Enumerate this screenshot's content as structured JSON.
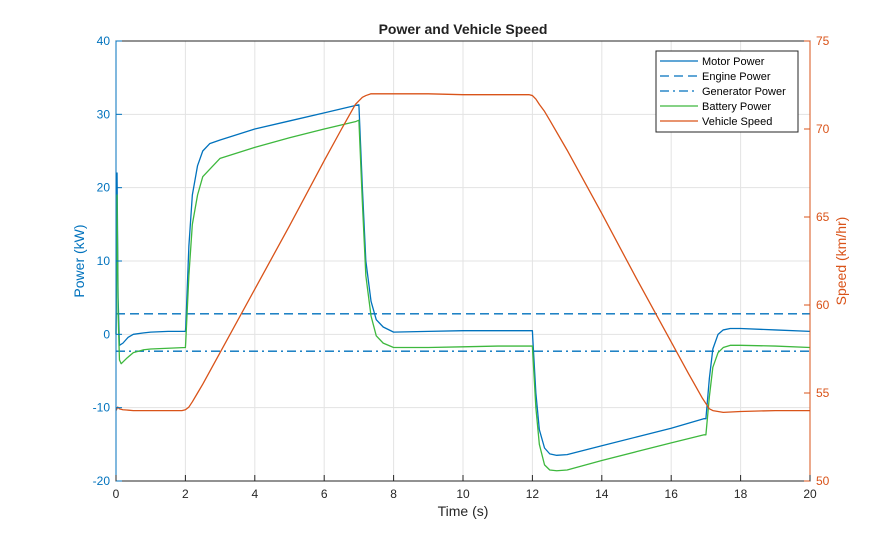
{
  "chart_data": {
    "type": "line",
    "title": "Power and Vehicle Speed",
    "xlabel": "Time (s)",
    "ylabel_left": "Power (kW)",
    "ylabel_right": "Speed (km/hr)",
    "xlim": [
      0,
      20
    ],
    "ylim_left": [
      -20,
      40
    ],
    "ylim_right": [
      50,
      75
    ],
    "xticks": [
      "0",
      "2",
      "4",
      "6",
      "8",
      "10",
      "12",
      "14",
      "16",
      "18",
      "20"
    ],
    "yticks_left": [
      "-20",
      "-10",
      "0",
      "10",
      "20",
      "30",
      "40"
    ],
    "yticks_right": [
      "50",
      "55",
      "60",
      "65",
      "70",
      "75"
    ],
    "grid": true,
    "legend_position": "top-right",
    "colors": {
      "blue": "#0072BD",
      "green": "#3EB83E",
      "orange": "#D95319",
      "left_axis": "#0072BD",
      "right_axis": "#D95319"
    },
    "series": [
      {
        "name": "Motor Power",
        "axis": "left",
        "style": "solid",
        "color": "#0072BD",
        "x": [
          0,
          0.03,
          0.06,
          0.1,
          0.2,
          0.35,
          0.5,
          0.8,
          1.0,
          1.5,
          2.0,
          2.01,
          2.1,
          2.2,
          2.35,
          2.5,
          2.7,
          3.0,
          4.0,
          5.0,
          6.0,
          6.9,
          7.0,
          7.1,
          7.2,
          7.35,
          7.5,
          7.7,
          8.0,
          9.0,
          10.0,
          11.0,
          12.0,
          12.01,
          12.1,
          12.2,
          12.35,
          12.5,
          12.7,
          13.0,
          14.0,
          15.0,
          16.0,
          16.95,
          17.0,
          17.1,
          17.2,
          17.35,
          17.5,
          17.7,
          18.0,
          19.0,
          20.0
        ],
        "y": [
          0,
          22,
          5,
          -1.5,
          -1.2,
          -0.4,
          0,
          0.2,
          0.3,
          0.4,
          0.4,
          1,
          12,
          19,
          23,
          25,
          26,
          26.5,
          28,
          29.1,
          30.2,
          31.2,
          31.3,
          20,
          10,
          4.5,
          2,
          1,
          0.3,
          0.4,
          0.5,
          0.5,
          0.5,
          -0.5,
          -8,
          -13,
          -15.5,
          -16.3,
          -16.5,
          -16.4,
          -15.2,
          -14,
          -12.8,
          -11.5,
          -11.5,
          -6,
          -2,
          0,
          0.6,
          0.8,
          0.8,
          0.6,
          0.4
        ]
      },
      {
        "name": "Engine Power",
        "axis": "left",
        "style": "dashed",
        "color": "#0072BD",
        "x": [
          0,
          20
        ],
        "y": [
          2.8,
          2.8
        ]
      },
      {
        "name": "Generator Power",
        "axis": "left",
        "style": "dashdot",
        "color": "#0072BD",
        "x": [
          0,
          20
        ],
        "y": [
          -2.3,
          -2.3
        ]
      },
      {
        "name": "Battery Power",
        "axis": "left",
        "style": "solid",
        "color": "#3EB83E",
        "x": [
          0,
          0.03,
          0.06,
          0.1,
          0.15,
          0.3,
          0.5,
          0.8,
          1.0,
          1.5,
          2.0,
          2.01,
          2.1,
          2.2,
          2.35,
          2.5,
          2.7,
          3.0,
          4.0,
          5.0,
          6.0,
          6.9,
          7.0,
          7.1,
          7.2,
          7.35,
          7.5,
          7.7,
          8.0,
          9.0,
          10.0,
          11.0,
          12.0,
          12.01,
          12.1,
          12.2,
          12.35,
          12.5,
          12.7,
          13.0,
          14.0,
          15.0,
          16.0,
          16.95,
          17.0,
          17.1,
          17.2,
          17.35,
          17.5,
          17.7,
          18.0,
          19.0,
          20.0
        ],
        "y": [
          0,
          19,
          3,
          -3.5,
          -4,
          -3.3,
          -2.5,
          -2.1,
          -2,
          -1.9,
          -1.8,
          -1,
          8,
          15,
          19,
          21.5,
          22.5,
          24,
          25.5,
          26.8,
          28,
          29,
          29.2,
          18,
          8,
          2.5,
          -0.2,
          -1.2,
          -1.8,
          -1.8,
          -1.7,
          -1.6,
          -1.6,
          -2.5,
          -10,
          -15,
          -17.8,
          -18.5,
          -18.6,
          -18.5,
          -17.2,
          -16,
          -14.8,
          -13.7,
          -13.7,
          -8.5,
          -4.5,
          -2.5,
          -1.8,
          -1.5,
          -1.5,
          -1.6,
          -1.8
        ]
      },
      {
        "name": "Vehicle Speed",
        "axis": "right",
        "style": "solid",
        "color": "#D95319",
        "x": [
          0,
          0.05,
          0.1,
          0.2,
          0.5,
          1.0,
          1.5,
          1.9,
          2.0,
          2.1,
          2.2,
          2.35,
          2.5,
          3.0,
          4.0,
          5.0,
          6.0,
          6.5,
          6.9,
          7.0,
          7.1,
          7.2,
          7.35,
          7.5,
          8.0,
          9.0,
          10.0,
          11.0,
          11.9,
          12.0,
          12.1,
          12.2,
          12.35,
          12.5,
          13.0,
          14.0,
          15.0,
          16.0,
          16.5,
          16.9,
          17.0,
          17.1,
          17.2,
          17.35,
          17.5,
          18.0,
          19.0,
          20.0
        ],
        "y": [
          54,
          54.2,
          54.1,
          54.05,
          54.0,
          54.0,
          54.0,
          54.0,
          54.05,
          54.2,
          54.5,
          55.0,
          55.5,
          57.3,
          60.9,
          64.5,
          68.2,
          70.0,
          71.4,
          71.6,
          71.8,
          71.9,
          72.0,
          72.0,
          72.0,
          72.0,
          71.95,
          71.95,
          71.95,
          71.9,
          71.7,
          71.4,
          71.0,
          70.5,
          68.8,
          65.2,
          61.5,
          57.9,
          56.1,
          54.7,
          54.4,
          54.1,
          54.0,
          53.95,
          53.9,
          53.95,
          54.0,
          54.0
        ]
      }
    ]
  }
}
